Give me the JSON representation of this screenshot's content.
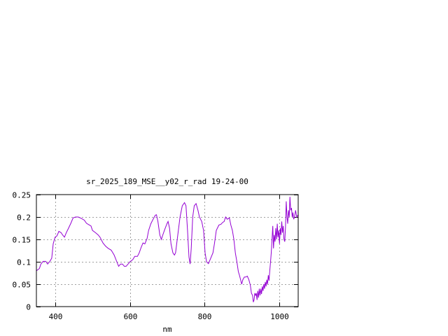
{
  "chart_data": {
    "type": "line",
    "title": "sr_2025_189_MSE__y02_r_rad 19-24-00",
    "xlabel": "nm",
    "ylabel": "",
    "xlim": [
      350,
      1050
    ],
    "ylim": [
      0,
      0.25
    ],
    "grid": true,
    "x_ticks": [
      400,
      600,
      800,
      1000
    ],
    "x_tick_labels": [
      "400",
      "600",
      "800",
      "1000"
    ],
    "y_ticks": [
      0,
      0.05,
      0.1,
      0.15,
      0.2,
      0.25
    ],
    "y_tick_labels": [
      "0",
      "0.05",
      "0.1",
      "0.15",
      "0.2",
      "0.25"
    ],
    "line_color": "#9400d3",
    "series": [
      {
        "points": [
          [
            350,
            0.08
          ],
          [
            358,
            0.085
          ],
          [
            362,
            0.095
          ],
          [
            368,
            0.101
          ],
          [
            375,
            0.101
          ],
          [
            380,
            0.095
          ],
          [
            386,
            0.101
          ],
          [
            391,
            0.108
          ],
          [
            395,
            0.14
          ],
          [
            400,
            0.155
          ],
          [
            405,
            0.158
          ],
          [
            410,
            0.168
          ],
          [
            416,
            0.165
          ],
          [
            420,
            0.16
          ],
          [
            425,
            0.155
          ],
          [
            430,
            0.165
          ],
          [
            436,
            0.175
          ],
          [
            442,
            0.186
          ],
          [
            448,
            0.198
          ],
          [
            455,
            0.2
          ],
          [
            462,
            0.2
          ],
          [
            470,
            0.197
          ],
          [
            478,
            0.193
          ],
          [
            484,
            0.186
          ],
          [
            490,
            0.183
          ],
          [
            496,
            0.18
          ],
          [
            500,
            0.17
          ],
          [
            508,
            0.165
          ],
          [
            515,
            0.16
          ],
          [
            520,
            0.155
          ],
          [
            528,
            0.142
          ],
          [
            535,
            0.135
          ],
          [
            542,
            0.13
          ],
          [
            550,
            0.126
          ],
          [
            558,
            0.115
          ],
          [
            565,
            0.1
          ],
          [
            570,
            0.09
          ],
          [
            575,
            0.095
          ],
          [
            580,
            0.095
          ],
          [
            585,
            0.09
          ],
          [
            590,
            0.09
          ],
          [
            600,
            0.1
          ],
          [
            608,
            0.105
          ],
          [
            613,
            0.112
          ],
          [
            620,
            0.112
          ],
          [
            625,
            0.12
          ],
          [
            630,
            0.132
          ],
          [
            635,
            0.142
          ],
          [
            640,
            0.14
          ],
          [
            646,
            0.152
          ],
          [
            650,
            0.17
          ],
          [
            656,
            0.185
          ],
          [
            662,
            0.195
          ],
          [
            668,
            0.204
          ],
          [
            671,
            0.205
          ],
          [
            675,
            0.19
          ],
          [
            680,
            0.16
          ],
          [
            684,
            0.15
          ],
          [
            688,
            0.16
          ],
          [
            693,
            0.172
          ],
          [
            699,
            0.185
          ],
          [
            702,
            0.19
          ],
          [
            706,
            0.175
          ],
          [
            710,
            0.14
          ],
          [
            715,
            0.12
          ],
          [
            719,
            0.115
          ],
          [
            722,
            0.12
          ],
          [
            728,
            0.16
          ],
          [
            734,
            0.2
          ],
          [
            740,
            0.225
          ],
          [
            746,
            0.232
          ],
          [
            750,
            0.225
          ],
          [
            754,
            0.17
          ],
          [
            758,
            0.11
          ],
          [
            761,
            0.095
          ],
          [
            764,
            0.13
          ],
          [
            768,
            0.2
          ],
          [
            772,
            0.225
          ],
          [
            777,
            0.23
          ],
          [
            782,
            0.215
          ],
          [
            786,
            0.2
          ],
          [
            792,
            0.19
          ],
          [
            797,
            0.17
          ],
          [
            801,
            0.12
          ],
          [
            805,
            0.1
          ],
          [
            810,
            0.096
          ],
          [
            816,
            0.108
          ],
          [
            822,
            0.12
          ],
          [
            826,
            0.14
          ],
          [
            831,
            0.17
          ],
          [
            838,
            0.182
          ],
          [
            844,
            0.184
          ],
          [
            848,
            0.188
          ],
          [
            852,
            0.19
          ],
          [
            856,
            0.2
          ],
          [
            860,
            0.195
          ],
          [
            866,
            0.198
          ],
          [
            870,
            0.182
          ],
          [
            874,
            0.17
          ],
          [
            878,
            0.15
          ],
          [
            882,
            0.12
          ],
          [
            886,
            0.1
          ],
          [
            890,
            0.078
          ],
          [
            893,
            0.07
          ],
          [
            896,
            0.06
          ],
          [
            899,
            0.05
          ],
          [
            902,
            0.06
          ],
          [
            906,
            0.066
          ],
          [
            910,
            0.066
          ],
          [
            914,
            0.068
          ],
          [
            918,
            0.06
          ],
          [
            922,
            0.048
          ],
          [
            925,
            0.03
          ],
          [
            928,
            0.025
          ],
          [
            930,
            0.01
          ],
          [
            932,
            0.015
          ],
          [
            934,
            0.03
          ],
          [
            936,
            0.025
          ],
          [
            938,
            0.03
          ],
          [
            940,
            0.015
          ],
          [
            942,
            0.035
          ],
          [
            944,
            0.02
          ],
          [
            946,
            0.04
          ],
          [
            948,
            0.025
          ],
          [
            950,
            0.04
          ],
          [
            952,
            0.028
          ],
          [
            954,
            0.045
          ],
          [
            956,
            0.035
          ],
          [
            958,
            0.05
          ],
          [
            960,
            0.04
          ],
          [
            962,
            0.055
          ],
          [
            964,
            0.045
          ],
          [
            966,
            0.06
          ],
          [
            968,
            0.05
          ],
          [
            970,
            0.07
          ],
          [
            972,
            0.058
          ],
          [
            974,
            0.08
          ],
          [
            976,
            0.1
          ],
          [
            978,
            0.12
          ],
          [
            980,
            0.15
          ],
          [
            982,
            0.18
          ],
          [
            984,
            0.13
          ],
          [
            986,
            0.16
          ],
          [
            988,
            0.145
          ],
          [
            990,
            0.175
          ],
          [
            992,
            0.15
          ],
          [
            994,
            0.185
          ],
          [
            996,
            0.155
          ],
          [
            998,
            0.17
          ],
          [
            1000,
            0.14
          ],
          [
            1002,
            0.175
          ],
          [
            1004,
            0.16
          ],
          [
            1006,
            0.19
          ],
          [
            1008,
            0.165
          ],
          [
            1010,
            0.18
          ],
          [
            1012,
            0.15
          ],
          [
            1014,
            0.145
          ],
          [
            1016,
            0.175
          ],
          [
            1018,
            0.235
          ],
          [
            1020,
            0.2
          ],
          [
            1022,
            0.185
          ],
          [
            1024,
            0.215
          ],
          [
            1026,
            0.2
          ],
          [
            1028,
            0.245
          ],
          [
            1030,
            0.215
          ],
          [
            1032,
            0.22
          ],
          [
            1034,
            0.2
          ],
          [
            1036,
            0.21
          ],
          [
            1038,
            0.195
          ],
          [
            1040,
            0.2
          ],
          [
            1043,
            0.215
          ],
          [
            1046,
            0.2
          ],
          [
            1050,
            0.205
          ]
        ]
      }
    ]
  }
}
